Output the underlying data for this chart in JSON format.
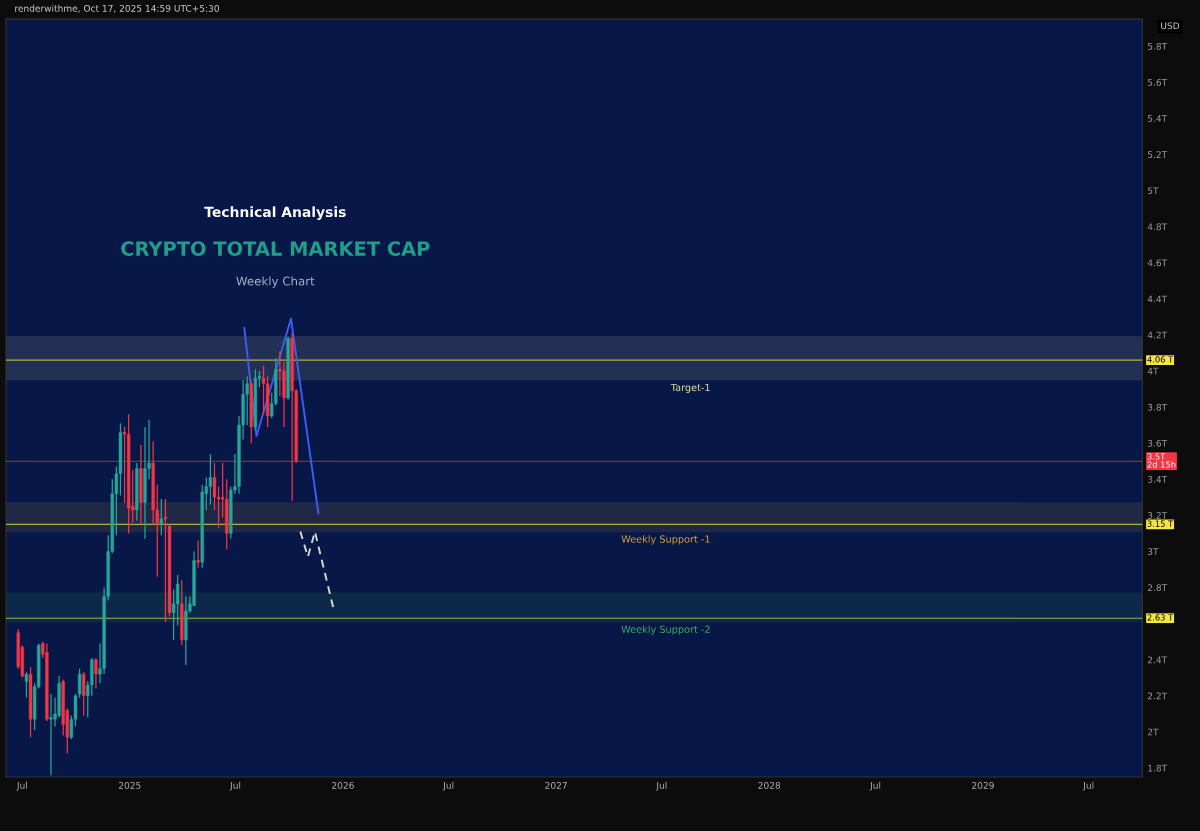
{
  "chart_data": {
    "type": "candlestick",
    "title": "CRYPTO TOTAL MARKET CAP",
    "subtitle": "Weekly Chart",
    "annotations": [
      "Technical Analysis",
      "USD",
      "renderwithme, Oct 17, 2025 14:59 UTC+5:30"
    ],
    "x": [
      "2024-06-24",
      "2024-07-01",
      "2024-07-08",
      "2024-07-15",
      "2024-07-22",
      "2024-07-29",
      "2024-08-05",
      "2024-08-12",
      "2024-08-19",
      "2024-08-26",
      "2024-09-02",
      "2024-09-09",
      "2024-09-16",
      "2024-09-23",
      "2024-09-30",
      "2024-10-07",
      "2024-10-14",
      "2024-10-21",
      "2024-10-28",
      "2024-11-04",
      "2024-11-11",
      "2024-11-18",
      "2024-11-25",
      "2024-12-02",
      "2024-12-09",
      "2024-12-16",
      "2024-12-23",
      "2024-12-30",
      "2025-01-06",
      "2025-01-13",
      "2025-01-20",
      "2025-01-27",
      "2025-02-03",
      "2025-02-10",
      "2025-02-17",
      "2025-02-24",
      "2025-03-03",
      "2025-03-10",
      "2025-03-17",
      "2025-03-24",
      "2025-03-31",
      "2025-04-07",
      "2025-04-14",
      "2025-04-21",
      "2025-04-28",
      "2025-05-05",
      "2025-05-12",
      "2025-05-19",
      "2025-05-26",
      "2025-06-02",
      "2025-06-09",
      "2025-06-16",
      "2025-06-23",
      "2025-06-30",
      "2025-07-07",
      "2025-07-14",
      "2025-07-21",
      "2025-07-28",
      "2025-08-04",
      "2025-08-11",
      "2025-08-18",
      "2025-08-25",
      "2025-09-01",
      "2025-09-08",
      "2025-09-15",
      "2025-09-22",
      "2025-09-29",
      "2025-10-06",
      "2025-10-13"
    ],
    "ohlc": [
      [
        2.55,
        2.57,
        2.35,
        2.36
      ],
      [
        2.47,
        2.48,
        2.3,
        2.31
      ],
      [
        2.28,
        2.33,
        2.19,
        2.32
      ],
      [
        2.32,
        2.36,
        1.97,
        2.07
      ],
      [
        2.07,
        2.27,
        2.01,
        2.25
      ],
      [
        2.25,
        2.49,
        2.24,
        2.48
      ],
      [
        2.49,
        2.5,
        2.41,
        2.43
      ],
      [
        2.44,
        2.49,
        2.06,
        2.07
      ],
      [
        2.07,
        2.21,
        1.76,
        2.08
      ],
      [
        2.07,
        2.19,
        2.03,
        2.1
      ],
      [
        2.09,
        2.31,
        2.08,
        2.27
      ],
      [
        2.28,
        2.29,
        1.98,
        2.04
      ],
      [
        2.12,
        2.13,
        1.88,
        1.97
      ],
      [
        1.97,
        2.09,
        1.96,
        2.07
      ],
      [
        2.07,
        2.21,
        2.03,
        2.2
      ],
      [
        2.21,
        2.35,
        2.19,
        2.32
      ],
      [
        2.32,
        2.33,
        2.09,
        2.2
      ],
      [
        2.2,
        2.28,
        2.08,
        2.26
      ],
      [
        2.26,
        2.41,
        2.2,
        2.4
      ],
      [
        2.4,
        2.41,
        2.24,
        2.32
      ],
      [
        2.32,
        2.49,
        2.27,
        2.35
      ],
      [
        2.35,
        2.8,
        2.32,
        2.75
      ],
      [
        2.75,
        3.09,
        2.73,
        3.0
      ],
      [
        3.0,
        3.4,
        2.99,
        3.32
      ],
      [
        3.32,
        3.47,
        3.09,
        3.43
      ],
      [
        3.43,
        3.71,
        3.31,
        3.66
      ],
      [
        3.66,
        3.69,
        3.27,
        3.65
      ],
      [
        3.65,
        3.76,
        3.1,
        3.24
      ],
      [
        3.25,
        3.45,
        3.16,
        3.23
      ],
      [
        3.23,
        3.49,
        3.17,
        3.46
      ],
      [
        3.46,
        3.59,
        3.15,
        3.27
      ],
      [
        3.27,
        3.69,
        3.07,
        3.46
      ],
      [
        3.46,
        3.73,
        3.4,
        3.49
      ],
      [
        3.49,
        3.61,
        3.15,
        3.23
      ],
      [
        3.23,
        3.37,
        2.86,
        3.15
      ],
      [
        3.15,
        3.29,
        3.09,
        3.18
      ],
      [
        3.19,
        3.29,
        2.61,
        3.18
      ],
      [
        3.14,
        3.15,
        2.64,
        2.66
      ],
      [
        2.66,
        2.79,
        2.51,
        2.71
      ],
      [
        2.71,
        2.87,
        2.59,
        2.82
      ],
      [
        2.71,
        2.84,
        2.48,
        2.51
      ],
      [
        2.51,
        2.75,
        2.37,
        2.67
      ],
      [
        2.67,
        2.75,
        2.66,
        2.71
      ],
      [
        2.7,
        3.0,
        2.7,
        2.95
      ],
      [
        2.95,
        3.06,
        2.91,
        2.94
      ],
      [
        2.94,
        3.37,
        2.91,
        3.33
      ],
      [
        3.32,
        3.41,
        3.23,
        3.36
      ],
      [
        3.36,
        3.54,
        3.26,
        3.41
      ],
      [
        3.41,
        3.49,
        3.23,
        3.3
      ],
      [
        3.3,
        3.36,
        3.13,
        3.29
      ],
      [
        3.3,
        3.49,
        3.19,
        3.29
      ],
      [
        3.29,
        3.4,
        3.01,
        3.1
      ],
      [
        3.1,
        3.36,
        3.07,
        3.34
      ],
      [
        3.34,
        3.54,
        3.32,
        3.36
      ],
      [
        3.36,
        3.75,
        3.32,
        3.7
      ],
      [
        3.7,
        3.95,
        3.62,
        3.87
      ],
      [
        3.87,
        3.97,
        3.7,
        3.93
      ],
      [
        3.93,
        3.95,
        3.6,
        3.69
      ],
      [
        3.69,
        4.01,
        3.67,
        3.96
      ],
      [
        3.96,
        4.0,
        3.91,
        3.97
      ],
      [
        3.96,
        4.03,
        3.76,
        3.93
      ],
      [
        3.93,
        3.97,
        3.69,
        3.75
      ],
      [
        3.75,
        3.88,
        3.74,
        3.82
      ],
      [
        3.82,
        4.07,
        3.81,
        4.01
      ],
      [
        4.01,
        4.11,
        3.86,
        4.0
      ],
      [
        4.0,
        4.05,
        3.69,
        3.85
      ],
      [
        3.85,
        4.19,
        3.84,
        4.18
      ],
      [
        4.18,
        4.21,
        3.28,
        3.89
      ],
      [
        3.89,
        3.9,
        3.49,
        3.5
      ]
    ],
    "colors": [
      "#f23645",
      "#f23645",
      "#26a69a",
      "#f23645",
      "#26a69a",
      "#26a69a",
      "#f23645",
      "#f23645",
      "#26a69a",
      "#26a69a",
      "#26a69a",
      "#f23645",
      "#f23645",
      "#26a69a",
      "#26a69a",
      "#26a69a",
      "#f23645",
      "#26a69a",
      "#26a69a",
      "#f23645",
      "#26a69a",
      "#26a69a",
      "#26a69a",
      "#26a69a",
      "#26a69a",
      "#26a69a",
      "#f23645",
      "#f23645",
      "#f23645",
      "#26a69a",
      "#f23645",
      "#26a69a",
      "#26a69a",
      "#f23645",
      "#f23645",
      "#26a69a",
      "#f23645",
      "#f23645",
      "#26a69a",
      "#26a69a",
      "#f23645",
      "#26a69a",
      "#26a69a",
      "#26a69a",
      "#f23645",
      "#26a69a",
      "#26a69a",
      "#26a69a",
      "#f23645",
      "#f23645",
      "#f23645",
      "#f23645",
      "#26a69a",
      "#26a69a",
      "#26a69a",
      "#26a69a",
      "#26a69a",
      "#f23645",
      "#26a69a",
      "#26a69a",
      "#f23645",
      "#f23645",
      "#26a69a",
      "#26a69a",
      "#f23645",
      "#f23645",
      "#26a69a",
      "#f23645",
      "#f23645"
    ],
    "series": [
      {
        "type": "line",
        "color": "#3d5df0",
        "x": [
          "2025-07-16",
          "2025-08-06",
          "2025-10-04",
          "2025-11-20"
        ],
        "values": [
          4.24,
          3.64,
          4.29,
          3.21
        ]
      },
      {
        "type": "line",
        "color": "#d8d8c8",
        "line_style": "dashed",
        "x": [
          "2025-10-20",
          "2025-11-02",
          "2025-11-14",
          "2025-12-16"
        ],
        "values": [
          3.11,
          2.97,
          3.11,
          2.68
        ]
      }
    ],
    "bands": [
      {
        "axis": "y",
        "from": 3.95,
        "to": 4.19,
        "label": "Target-1",
        "color": "#e8e0a0"
      },
      {
        "axis": "y",
        "from": 3.11,
        "to": 3.27,
        "label": "Weekly Support -1",
        "color": "#d9a23a"
      },
      {
        "axis": "y",
        "from": 2.61,
        "to": 2.77,
        "label": "Weekly Support -2",
        "color": "#3fae5a"
      }
    ],
    "ref_lines": [
      {
        "axis": "y",
        "value": 4.06,
        "label": "4.06 T",
        "color": "#f5e642"
      },
      {
        "axis": "y",
        "value": 3.5,
        "label": "3.5T\n2d 15h",
        "color": "#f23645"
      },
      {
        "axis": "y",
        "value": 3.15,
        "label": "3.15 T",
        "color": "#f5e642"
      },
      {
        "axis": "y",
        "value": 2.63,
        "label": "2.63 T",
        "color": "#f5e642"
      }
    ],
    "xlim": [
      "2024-06-03",
      "2029-10-01"
    ],
    "xticks": [
      {
        "value": "2024-07-01",
        "label": "Jul"
      },
      {
        "value": "2025-01-01",
        "label": "2025"
      },
      {
        "value": "2025-07-01",
        "label": "Jul"
      },
      {
        "value": "2026-01-01",
        "label": "2026"
      },
      {
        "value": "2026-07-01",
        "label": "Jul"
      },
      {
        "value": "2027-01-01",
        "label": "2027"
      },
      {
        "value": "2027-07-01",
        "label": "Jul"
      },
      {
        "value": "2028-01-01",
        "label": "2028"
      },
      {
        "value": "2028-07-01",
        "label": "Jul"
      },
      {
        "value": "2029-01-01",
        "label": "2029"
      },
      {
        "value": "2029-07-01",
        "label": "Jul"
      }
    ],
    "ylim": [
      1.75,
      5.95
    ],
    "yticks": [
      {
        "value": 1.8,
        "label": "1.8T"
      },
      {
        "value": 2.0,
        "label": "2T"
      },
      {
        "value": 2.2,
        "label": "2.2T"
      },
      {
        "value": 2.4,
        "label": "2.4T"
      },
      {
        "value": 2.8,
        "label": "2.8T"
      },
      {
        "value": 3.0,
        "label": "3T"
      },
      {
        "value": 3.2,
        "label": "3.2T"
      },
      {
        "value": 3.4,
        "label": "3.4T"
      },
      {
        "value": 3.6,
        "label": "3.6T"
      },
      {
        "value": 3.8,
        "label": "3.8T"
      },
      {
        "value": 4.0,
        "label": "4T"
      },
      {
        "value": 4.2,
        "label": "4.2T"
      },
      {
        "value": 4.4,
        "label": "4.4T"
      },
      {
        "value": 4.6,
        "label": "4.6T"
      },
      {
        "value": 4.8,
        "label": "4.8T"
      },
      {
        "value": 5.0,
        "label": "5T"
      },
      {
        "value": 5.2,
        "label": "5.2T"
      },
      {
        "value": 5.4,
        "label": "5.4T"
      },
      {
        "value": 5.6,
        "label": "5.6T"
      },
      {
        "value": 5.8,
        "label": "5.8T"
      }
    ]
  }
}
